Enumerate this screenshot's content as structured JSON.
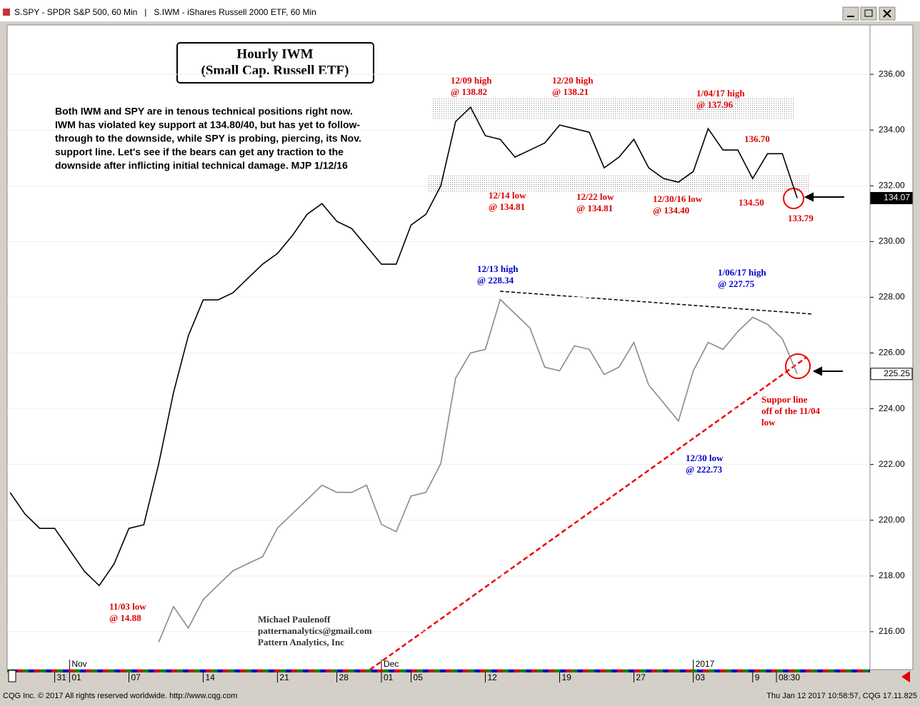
{
  "window": {
    "title": "S.SPY - SPDR S&P 500, 60 Min   |   S.IWM - iShares Russell 2000 ETF, 60 Min"
  },
  "footer": {
    "left": "CQG Inc. © 2017 All rights reserved worldwide. http://www.cqg.com",
    "right": "Thu Jan 12 2017 10:58:57, CQG 17.11.825"
  },
  "chart_data": {
    "type": "line",
    "title": [
      "Hourly IWM",
      "(Small Cap. Russell ETF)"
    ],
    "comment": [
      "Both IWM and SPY are in tenous technical positions right now.",
      "IWM has violated key support at 134.80/40, but has yet to follow-",
      "through to the downside, while SPY is probing, piercing, its Nov.",
      "support line. Let's see if the bears can get any traction to the",
      "downside after inflicting initial technical damage. MJP 1/12/16"
    ],
    "credit": [
      "Michael Paulenoff",
      "patternanalytics@gmail.com",
      "Pattern Analytics, Inc"
    ],
    "months": [
      {
        "value": 1,
        "label": "Nov"
      },
      {
        "value": 22,
        "label": "Dec"
      },
      {
        "value": 43,
        "label": "2017"
      }
    ],
    "xlim": [
      -3.2,
      54.9
    ],
    "xticks": [
      {
        "value": 0,
        "label": "31"
      },
      {
        "value": 1,
        "label": "01"
      },
      {
        "value": 5,
        "label": "07"
      },
      {
        "value": 10,
        "label": "14"
      },
      {
        "value": 15,
        "label": "21"
      },
      {
        "value": 19,
        "label": "28"
      },
      {
        "value": 22,
        "label": "01"
      },
      {
        "value": 24,
        "label": "05"
      },
      {
        "value": 29,
        "label": "12"
      },
      {
        "value": 34,
        "label": "19"
      },
      {
        "value": 39,
        "label": "27"
      },
      {
        "value": 43,
        "label": "03"
      },
      {
        "value": 47,
        "label": "9"
      },
      {
        "value": 48.6,
        "label": "08:30"
      }
    ],
    "ylim": [
      214.64,
      237.77
    ],
    "yticks": [
      {
        "value": 216,
        "label": "216.00"
      },
      {
        "value": 218,
        "label": "218.00"
      },
      {
        "value": 220,
        "label": "220.00"
      },
      {
        "value": 222,
        "label": "222.00"
      },
      {
        "value": 224,
        "label": "224.00"
      },
      {
        "value": 226,
        "label": "226.00"
      },
      {
        "value": 228,
        "label": "228.00"
      },
      {
        "value": 230,
        "label": "230.00"
      },
      {
        "value": 232,
        "label": "232.00"
      },
      {
        "value": 234,
        "label": "234.00"
      },
      {
        "value": 236,
        "label": "236.00"
      }
    ],
    "y2lim": [
      110.73,
      142.64
    ],
    "series": [
      {
        "color": "#000000",
        "axis": "y2",
        "x": [
          -3,
          -2,
          -1,
          0,
          1,
          2,
          3,
          4,
          5,
          6,
          7,
          8,
          9,
          10,
          11,
          12,
          13,
          14,
          15,
          16,
          17,
          18,
          19,
          20,
          21,
          22,
          23,
          24,
          25,
          26,
          27,
          28,
          29,
          30,
          31,
          32,
          33,
          34,
          35,
          36,
          37,
          38,
          39,
          40,
          41,
          42,
          43,
          44,
          45,
          46,
          47,
          48,
          49,
          50
        ],
        "values": [
          119.49,
          118.43,
          117.72,
          117.72,
          116.66,
          115.6,
          114.89,
          115.96,
          117.72,
          117.9,
          120.9,
          124.44,
          127.26,
          129.03,
          129.03,
          129.38,
          130.09,
          130.8,
          131.33,
          132.21,
          133.27,
          133.8,
          132.92,
          132.56,
          131.68,
          130.8,
          130.8,
          132.74,
          133.27,
          134.68,
          137.86,
          138.57,
          137.16,
          136.98,
          136.1,
          136.45,
          136.8,
          137.69,
          137.51,
          137.33,
          135.57,
          136.1,
          136.98,
          135.57,
          135.04,
          134.86,
          135.39,
          137.51,
          136.45,
          136.45,
          135.04,
          136.27,
          136.27,
          134.07
        ]
      },
      {
        "color": "#8a8a8a",
        "x": [
          7,
          8,
          9,
          10,
          11,
          12,
          13,
          14,
          15,
          16,
          17,
          18,
          19,
          20,
          21,
          22,
          23,
          24,
          25,
          26,
          27,
          28,
          29,
          30,
          31,
          32,
          33,
          34,
          35,
          36,
          37,
          38,
          39,
          40,
          41,
          42,
          43,
          44,
          45,
          46,
          47,
          48,
          49,
          50
        ],
        "values": [
          215.62,
          216.9,
          216.13,
          217.15,
          217.67,
          218.18,
          218.44,
          218.69,
          219.72,
          220.23,
          220.74,
          221.26,
          221,
          221,
          221.26,
          219.85,
          219.59,
          220.87,
          221,
          222.03,
          225.1,
          226,
          226.13,
          227.92,
          227.41,
          226.9,
          225.49,
          225.36,
          226.26,
          226.13,
          225.23,
          225.49,
          226.38,
          224.85,
          224.21,
          223.56,
          225.36,
          226.38,
          226.13,
          226.77,
          227.28,
          227.03,
          226.51,
          225.25
        ]
      }
    ],
    "annotations": [
      {
        "lines": [
          "12/09 high",
          "@ 138.82"
        ],
        "color": "#dd0000"
      },
      {
        "lines": [
          "12/20 high",
          "@ 138.21"
        ],
        "color": "#dd0000"
      },
      {
        "lines": [
          "1/04/17 high",
          "@ 137.96"
        ],
        "color": "#dd0000"
      },
      {
        "lines": [
          "136.70"
        ],
        "color": "#dd0000"
      },
      {
        "lines": [
          "12/14 low",
          "@ 134.81"
        ],
        "color": "#dd0000"
      },
      {
        "lines": [
          "12/22 low",
          "@ 134.81"
        ],
        "color": "#dd0000"
      },
      {
        "lines": [
          "12/30/16 low",
          "@ 134.40"
        ],
        "color": "#dd0000"
      },
      {
        "lines": [
          "134.50"
        ],
        "color": "#dd0000"
      },
      {
        "lines": [
          "133.79"
        ],
        "color": "#dd0000"
      },
      {
        "lines": [
          "12/13 high",
          "@ 228.34"
        ],
        "color": "#0000cc"
      },
      {
        "lines": [
          "1/06/17 high",
          "@ 227.75"
        ],
        "color": "#0000cc"
      },
      {
        "lines": [
          "12/30 low",
          "@ 222.73"
        ],
        "color": "#0000cc"
      },
      {
        "lines": [
          "Suppor line",
          "off of the 11/04",
          "low"
        ],
        "color": "#dd0000"
      },
      {
        "lines": [
          "11/03 low",
          "@ 14.88"
        ],
        "color": "#dd0000"
      }
    ]
  }
}
